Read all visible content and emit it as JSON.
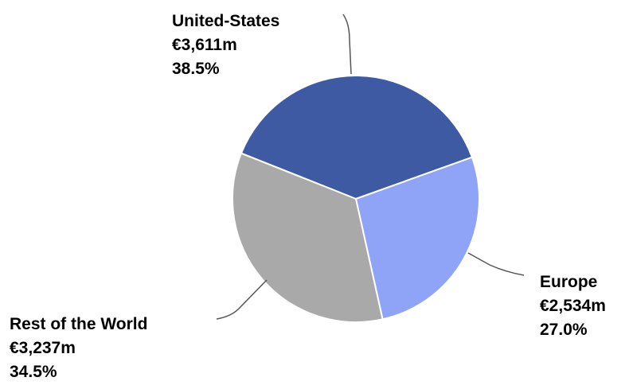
{
  "chart_data": {
    "type": "pie",
    "title": "",
    "legend": "none",
    "slices": [
      {
        "label": "United-States",
        "value_text": "€3,611m",
        "percent_text": "38.5%",
        "value": 3611,
        "percent": 38.5,
        "color": "#3d5aa3"
      },
      {
        "label": "Europe",
        "value_text": "€2,534m",
        "percent_text": "27.0%",
        "value": 2534,
        "percent": 27.0,
        "color": "#90a4f7"
      },
      {
        "label": "Rest of the World",
        "value_text": "€3,237m",
        "percent_text": "34.5%",
        "value": 3237,
        "percent": 34.5,
        "color": "#a9a9a9"
      }
    ]
  }
}
